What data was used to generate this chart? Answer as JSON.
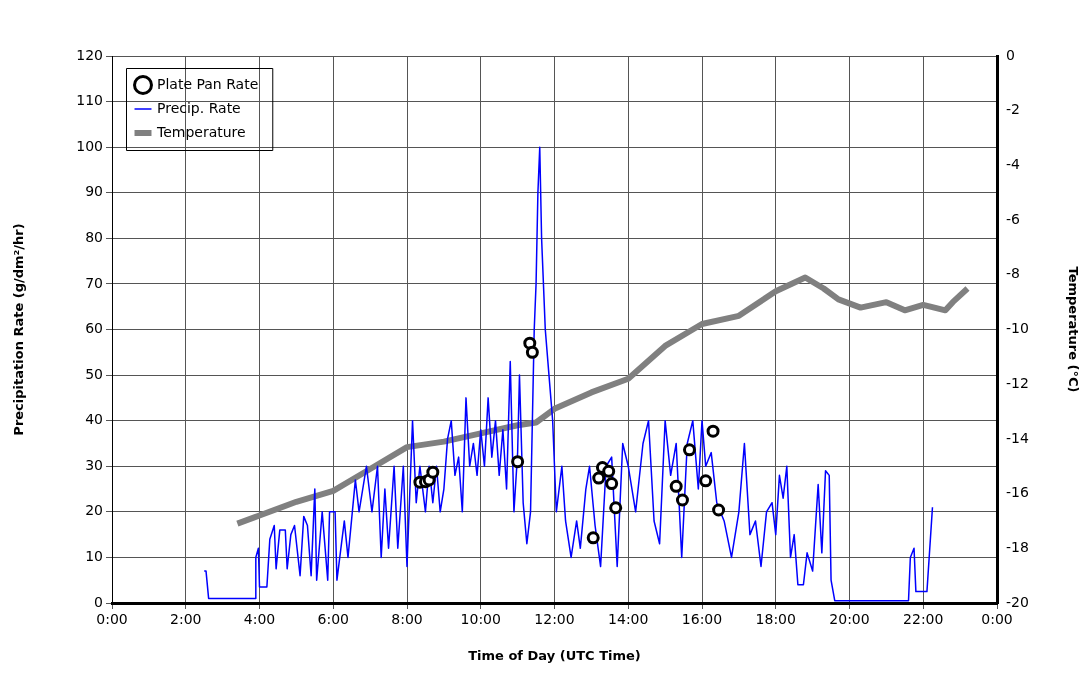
{
  "chart_data": {
    "type": "line",
    "xlabel": "Time of Day (UTC Time)",
    "ylabel": "Precipitation Rate (g/dm²/hr)",
    "y2label": "Temperature (°C)",
    "xlim": [
      0,
      24
    ],
    "xticks": [
      {
        "value": 0,
        "label": "0:00"
      },
      {
        "value": 2,
        "label": "2:00"
      },
      {
        "value": 4,
        "label": "4:00"
      },
      {
        "value": 6,
        "label": "6:00"
      },
      {
        "value": 8,
        "label": "8:00"
      },
      {
        "value": 10,
        "label": "10:00"
      },
      {
        "value": 12,
        "label": "12:00"
      },
      {
        "value": 14,
        "label": "14:00"
      },
      {
        "value": 16,
        "label": "16:00"
      },
      {
        "value": 18,
        "label": "18:00"
      },
      {
        "value": 20,
        "label": "20:00"
      },
      {
        "value": 22,
        "label": "22:00"
      },
      {
        "value": 24,
        "label": "0:00"
      }
    ],
    "ylim": [
      0,
      120
    ],
    "yticks": [
      0,
      10,
      20,
      30,
      40,
      50,
      60,
      70,
      80,
      90,
      100,
      110,
      120
    ],
    "y2lim": [
      -20,
      0
    ],
    "y2ticks": [
      -20,
      -18,
      -16,
      -14,
      -12,
      -10,
      -8,
      -6,
      -4,
      -2,
      0
    ],
    "grid": true,
    "legend": "top left",
    "series": [
      {
        "name": "Precip. Rate",
        "type": "line",
        "color": "#0000ff",
        "x": [
          2.5,
          2.55,
          2.62,
          3.88,
          3.9,
          3.97,
          4.0,
          4.2,
          4.28,
          4.4,
          4.45,
          4.55,
          4.7,
          4.75,
          4.85,
          4.95,
          5.1,
          5.2,
          5.3,
          5.4,
          5.5,
          5.55,
          5.7,
          5.85,
          5.9,
          6.05,
          6.1,
          6.3,
          6.4,
          6.6,
          6.7,
          6.9,
          7.05,
          7.2,
          7.3,
          7.4,
          7.5,
          7.65,
          7.75,
          7.9,
          8.0,
          8.15,
          8.25,
          8.35,
          8.5,
          8.6,
          8.7,
          8.8,
          8.9,
          9.0,
          9.1,
          9.2,
          9.3,
          9.4,
          9.5,
          9.6,
          9.7,
          9.8,
          9.9,
          10.0,
          10.1,
          10.2,
          10.3,
          10.4,
          10.5,
          10.6,
          10.7,
          10.8,
          10.9,
          11.0,
          11.05,
          11.15,
          11.25,
          11.35,
          11.45,
          11.5,
          11.55,
          11.6,
          11.65,
          11.75,
          11.85,
          11.95,
          12.05,
          12.2,
          12.3,
          12.45,
          12.6,
          12.7,
          12.85,
          12.95,
          13.1,
          13.25,
          13.4,
          13.55,
          13.7,
          13.85,
          14.0,
          14.2,
          14.4,
          14.55,
          14.7,
          14.85,
          15.0,
          15.15,
          15.3,
          15.45,
          15.6,
          15.75,
          15.9,
          16.0,
          16.1,
          16.25,
          16.4,
          16.6,
          16.8,
          17.0,
          17.15,
          17.3,
          17.45,
          17.6,
          17.75,
          17.9,
          18.0,
          18.1,
          18.2,
          18.3,
          18.4,
          18.5,
          18.6,
          18.75,
          18.85,
          19.0,
          19.15,
          19.25,
          19.35,
          19.45,
          19.5,
          19.6,
          21.6,
          21.65,
          21.75,
          21.8,
          22.1,
          22.25
        ],
        "values": [
          7,
          7,
          1,
          1,
          10,
          12,
          3.5,
          3.5,
          14,
          17,
          7.5,
          16,
          16,
          7.5,
          15,
          17,
          6,
          19,
          17,
          6,
          25,
          5,
          20,
          5,
          20,
          20,
          5,
          18,
          10,
          27,
          20,
          30,
          20,
          30,
          10,
          25,
          12,
          30,
          12,
          30,
          8,
          40,
          22,
          30,
          20,
          30,
          22,
          30,
          20,
          25,
          36,
          40,
          28,
          32,
          20,
          45,
          30,
          35,
          28,
          38,
          30,
          45,
          32,
          40,
          28,
          38,
          25,
          53,
          20,
          33,
          50,
          22,
          13,
          20,
          60,
          70,
          90,
          100,
          80,
          60,
          50,
          40,
          20,
          30,
          18,
          10,
          18,
          12,
          25,
          30,
          17,
          8,
          30,
          32,
          8,
          35,
          30,
          20,
          35,
          40,
          18,
          13,
          40,
          28,
          35,
          10,
          35,
          40,
          25,
          40,
          30,
          33,
          22,
          18,
          10,
          20,
          35,
          15,
          18,
          8,
          20,
          22,
          15,
          28,
          23,
          30,
          10,
          15,
          4,
          4,
          11,
          7,
          26,
          11,
          29,
          28,
          5,
          0.5,
          0.5,
          10,
          12,
          2.5,
          2.5,
          21
        ]
      },
      {
        "name": "Plate Pan Rate",
        "type": "scatter",
        "color": "#000000",
        "marker": "circle",
        "x": [
          8.35,
          8.5,
          8.6,
          8.7,
          11.0,
          11.33,
          11.4,
          13.05,
          13.2,
          13.3,
          13.47,
          13.55,
          13.66,
          15.3,
          15.47,
          15.66,
          16.1,
          16.3,
          16.45
        ],
        "values": [
          26.5,
          26.6,
          27,
          28.7,
          31,
          57,
          55,
          14.3,
          27.4,
          29.7,
          28.9,
          26.2,
          20.9,
          25.6,
          22.6,
          33.6,
          26.8,
          37.7,
          20.4
        ]
      },
      {
        "name": "Temperature",
        "type": "line",
        "axis": "y2",
        "color": "#808080",
        "x": [
          3.4,
          4,
          5,
          6,
          7,
          8,
          9,
          10,
          11,
          11.5,
          12,
          13,
          14,
          15,
          16,
          17,
          18,
          18.8,
          19.3,
          19.7,
          20.3,
          21,
          21.5,
          22,
          22.6,
          22.8,
          23.2
        ],
        "values": [
          -17.1,
          -16.8,
          -16.3,
          -15.9,
          -15.1,
          -14.3,
          -14.1,
          -13.8,
          -13.5,
          -13.4,
          -12.9,
          -12.3,
          -11.8,
          -10.6,
          -9.8,
          -9.5,
          -8.6,
          -8.1,
          -8.5,
          -8.9,
          -9.2,
          -9.0,
          -9.3,
          -9.1,
          -9.3,
          -9.0,
          -8.5
        ]
      }
    ]
  }
}
